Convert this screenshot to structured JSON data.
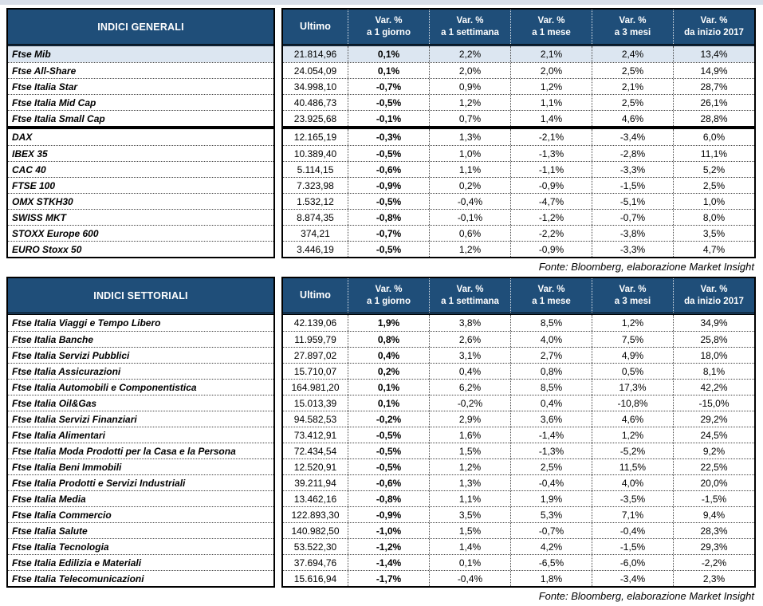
{
  "colors": {
    "header_bg": "#1F4E79",
    "highlight_row_bg": "#DCE6F1",
    "border": "#000000",
    "top_strip": "#D8DEE8"
  },
  "columns": {
    "ultimo": "Ultimo",
    "var_headers": [
      {
        "line1": "Var. %",
        "line2": "a 1 giorno"
      },
      {
        "line1": "Var. %",
        "line2": "a 1 settimana"
      },
      {
        "line1": "Var. %",
        "line2": "a 1 mese"
      },
      {
        "line1": "Var. %",
        "line2": "a 3 mesi"
      },
      {
        "line1": "Var. %",
        "line2": "da inizio 2017"
      }
    ]
  },
  "tables": [
    {
      "title": "INDICI GENERALI",
      "source_note": "Fonte: Bloomberg, elaborazione Market Insight",
      "sections": [
        {
          "rows": [
            {
              "label": "Ftse Mib",
              "ultimo": "21.814,96",
              "vars": [
                "0,1%",
                "2,2%",
                "2,1%",
                "2,4%",
                "13,4%"
              ],
              "highlighted": true
            },
            {
              "label": "Ftse All-Share",
              "ultimo": "24.054,09",
              "vars": [
                "0,1%",
                "2,0%",
                "2,0%",
                "2,5%",
                "14,9%"
              ]
            },
            {
              "label": "Ftse Italia Star",
              "ultimo": "34.998,10",
              "vars": [
                "-0,7%",
                "0,9%",
                "1,2%",
                "2,1%",
                "28,7%"
              ]
            },
            {
              "label": "Ftse Italia Mid Cap",
              "ultimo": "40.486,73",
              "vars": [
                "-0,5%",
                "1,2%",
                "1,1%",
                "2,5%",
                "26,1%"
              ]
            },
            {
              "label": "Ftse Italia Small Cap",
              "ultimo": "23.925,68",
              "vars": [
                "-0,1%",
                "0,7%",
                "1,4%",
                "4,6%",
                "28,8%"
              ]
            }
          ]
        },
        {
          "rows": [
            {
              "label": "DAX",
              "ultimo": "12.165,19",
              "vars": [
                "-0,3%",
                "1,3%",
                "-2,1%",
                "-3,4%",
                "6,0%"
              ]
            },
            {
              "label": "IBEX 35",
              "ultimo": "10.389,40",
              "vars": [
                "-0,5%",
                "1,0%",
                "-1,3%",
                "-2,8%",
                "11,1%"
              ]
            },
            {
              "label": "CAC 40",
              "ultimo": "5.114,15",
              "vars": [
                "-0,6%",
                "1,1%",
                "-1,1%",
                "-3,3%",
                "5,2%"
              ]
            },
            {
              "label": "FTSE 100",
              "ultimo": "7.323,98",
              "vars": [
                "-0,9%",
                "0,2%",
                "-0,9%",
                "-1,5%",
                "2,5%"
              ]
            },
            {
              "label": "OMX STKH30",
              "ultimo": "1.532,12",
              "vars": [
                "-0,5%",
                "-0,4%",
                "-4,7%",
                "-5,1%",
                "1,0%"
              ]
            },
            {
              "label": "SWISS MKT",
              "ultimo": "8.874,35",
              "vars": [
                "-0,8%",
                "-0,1%",
                "-1,2%",
                "-0,7%",
                "8,0%"
              ]
            },
            {
              "label": "STOXX Europe 600",
              "ultimo": "374,21",
              "vars": [
                "-0,7%",
                "0,6%",
                "-2,2%",
                "-3,8%",
                "3,5%"
              ]
            },
            {
              "label": "EURO Stoxx 50",
              "ultimo": "3.446,19",
              "vars": [
                "-0,5%",
                "1,2%",
                "-0,9%",
                "-3,3%",
                "4,7%"
              ]
            }
          ]
        }
      ]
    },
    {
      "title": "INDICI SETTORIALI",
      "source_note": "Fonte: Bloomberg, elaborazione Market Insight",
      "sections": [
        {
          "rows": [
            {
              "label": "Ftse Italia Viaggi e Tempo Libero",
              "ultimo": "42.139,06",
              "vars": [
                "1,9%",
                "3,8%",
                "8,5%",
                "1,2%",
                "34,9%"
              ]
            },
            {
              "label": "Ftse Italia Banche",
              "ultimo": "11.959,79",
              "vars": [
                "0,8%",
                "2,6%",
                "4,0%",
                "7,5%",
                "25,8%"
              ]
            },
            {
              "label": "Ftse Italia Servizi Pubblici",
              "ultimo": "27.897,02",
              "vars": [
                "0,4%",
                "3,1%",
                "2,7%",
                "4,9%",
                "18,0%"
              ]
            },
            {
              "label": "Ftse Italia Assicurazioni",
              "ultimo": "15.710,07",
              "vars": [
                "0,2%",
                "0,4%",
                "0,8%",
                "0,5%",
                "8,1%"
              ]
            },
            {
              "label": "Ftse Italia Automobili e Componentistica",
              "ultimo": "164.981,20",
              "vars": [
                "0,1%",
                "6,2%",
                "8,5%",
                "17,3%",
                "42,2%"
              ]
            },
            {
              "label": "Ftse Italia Oil&Gas",
              "ultimo": "15.013,39",
              "vars": [
                "0,1%",
                "-0,2%",
                "0,4%",
                "-10,8%",
                "-15,0%"
              ]
            },
            {
              "label": "Ftse Italia Servizi Finanziari",
              "ultimo": "94.582,53",
              "vars": [
                "-0,2%",
                "2,9%",
                "3,6%",
                "4,6%",
                "29,2%"
              ]
            },
            {
              "label": "Ftse Italia Alimentari",
              "ultimo": "73.412,91",
              "vars": [
                "-0,5%",
                "1,6%",
                "-1,4%",
                "1,2%",
                "24,5%"
              ]
            },
            {
              "label": "Ftse Italia Moda Prodotti per la Casa e la Persona",
              "ultimo": "72.434,54",
              "vars": [
                "-0,5%",
                "1,5%",
                "-1,3%",
                "-5,2%",
                "9,2%"
              ]
            },
            {
              "label": "Ftse Italia Beni Immobili",
              "ultimo": "12.520,91",
              "vars": [
                "-0,5%",
                "1,2%",
                "2,5%",
                "11,5%",
                "22,5%"
              ]
            },
            {
              "label": "Ftse Italia Prodotti e Servizi Industriali",
              "ultimo": "39.211,94",
              "vars": [
                "-0,6%",
                "1,3%",
                "-0,4%",
                "4,0%",
                "20,0%"
              ]
            },
            {
              "label": "Ftse Italia Media",
              "ultimo": "13.462,16",
              "vars": [
                "-0,8%",
                "1,1%",
                "1,9%",
                "-3,5%",
                "-1,5%"
              ]
            },
            {
              "label": "Ftse Italia Commercio",
              "ultimo": "122.893,30",
              "vars": [
                "-0,9%",
                "3,5%",
                "5,3%",
                "7,1%",
                "9,4%"
              ]
            },
            {
              "label": "Ftse Italia Salute",
              "ultimo": "140.982,50",
              "vars": [
                "-1,0%",
                "1,5%",
                "-0,7%",
                "-0,4%",
                "28,3%"
              ]
            },
            {
              "label": "Ftse Italia Tecnologia",
              "ultimo": "53.522,30",
              "vars": [
                "-1,2%",
                "1,4%",
                "4,2%",
                "-1,5%",
                "29,3%"
              ]
            },
            {
              "label": "Ftse Italia Edilizia e Materiali",
              "ultimo": "37.694,76",
              "vars": [
                "-1,4%",
                "0,1%",
                "-6,5%",
                "-6,0%",
                "-2,2%"
              ]
            },
            {
              "label": "Ftse Italia Telecomunicazioni",
              "ultimo": "15.616,94",
              "vars": [
                "-1,7%",
                "-0,4%",
                "1,8%",
                "-3,4%",
                "2,3%"
              ]
            }
          ]
        }
      ]
    }
  ]
}
